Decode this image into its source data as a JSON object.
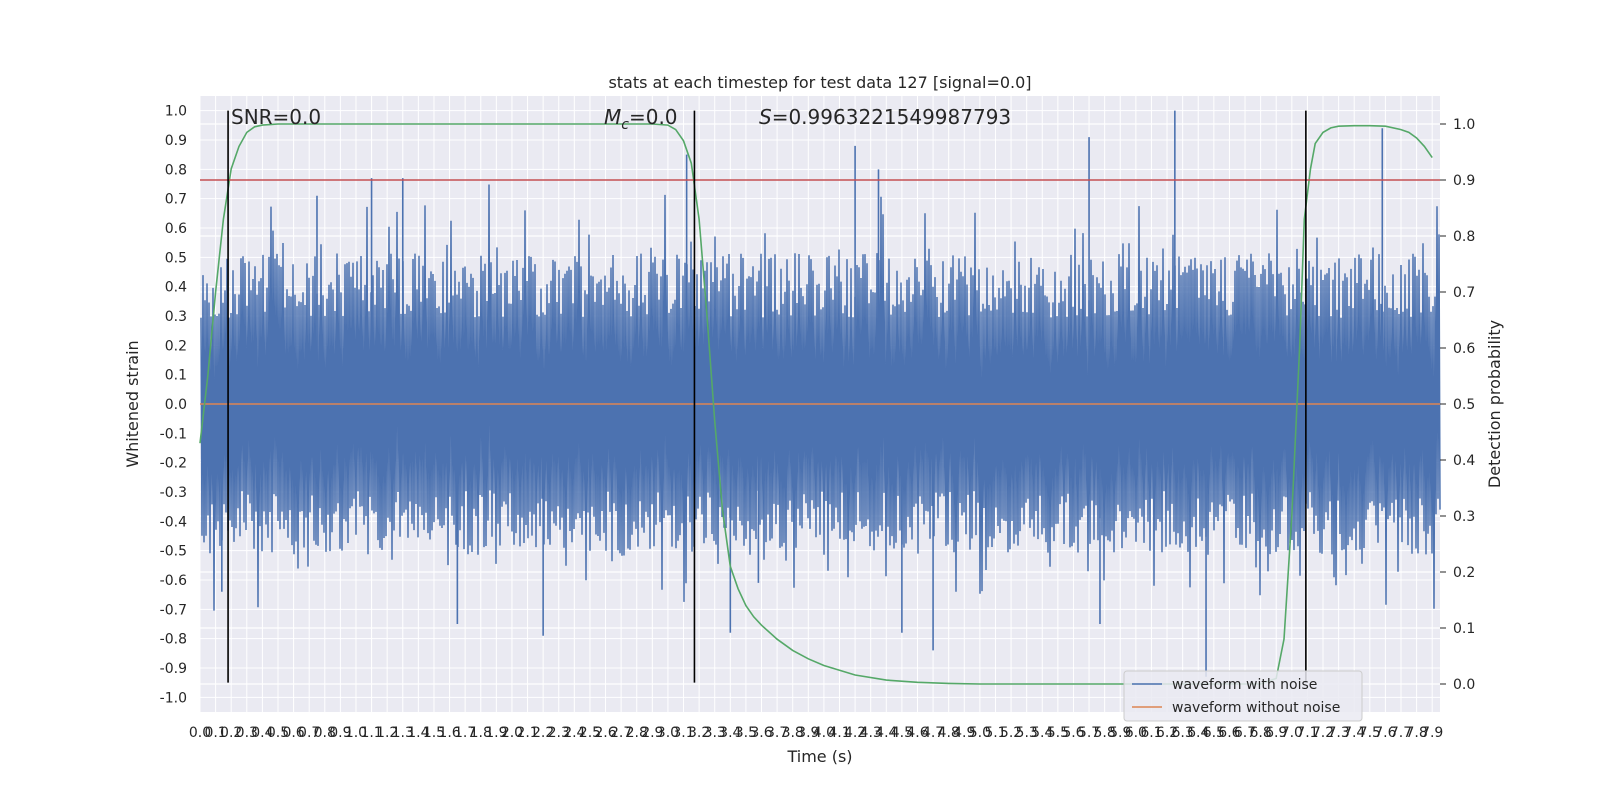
{
  "chart_data": {
    "type": "line",
    "title": "stats at each timestep for test data 127 [signal=0.0]",
    "xlabel": "Time (s)",
    "ylabel": "Whitened strain",
    "ylabel2": "Detection probability",
    "xlim": [
      0,
      7.95
    ],
    "ylim": [
      -1.05,
      1.05
    ],
    "ylim2": [
      -0.05,
      1.05
    ],
    "x_ticks": [
      "0.0",
      "0.1",
      "0.2",
      "0.3",
      "0.4",
      "0.5",
      "0.6",
      "0.7",
      "0.8",
      "0.9",
      "1.0",
      "1.1",
      "1.2",
      "1.3",
      "1.4",
      "1.5",
      "1.6",
      "1.7",
      "1.8",
      "1.9",
      "2.0",
      "2.1",
      "2.2",
      "2.3",
      "2.4",
      "2.5",
      "2.6",
      "2.7",
      "2.8",
      "2.9",
      "3.0",
      "3.1",
      "3.2",
      "3.3",
      "3.4",
      "3.5",
      "3.6",
      "3.7",
      "3.8",
      "3.9",
      "4.0",
      "4.1",
      "4.2",
      "4.3",
      "4.4",
      "4.5",
      "4.6",
      "4.7",
      "4.8",
      "4.9",
      "5.0",
      "5.1",
      "5.2",
      "5.3",
      "5.4",
      "5.5",
      "5.6",
      "5.7",
      "5.8",
      "5.9",
      "6.0",
      "6.1",
      "6.2",
      "6.3",
      "6.4",
      "6.5",
      "6.6",
      "6.7",
      "6.8",
      "6.9",
      "7.0",
      "7.1",
      "7.2",
      "7.3",
      "7.4",
      "7.5",
      "7.6",
      "7.7",
      "7.8",
      "7.9"
    ],
    "y_ticks": [
      "1.0",
      "0.9",
      "0.8",
      "0.7",
      "0.6",
      "0.5",
      "0.4",
      "0.3",
      "0.2",
      "0.1",
      "0.0",
      "-0.1",
      "-0.2",
      "-0.3",
      "-0.4",
      "-0.5",
      "-0.6",
      "-0.7",
      "-0.8",
      "-0.9",
      "-1.0"
    ],
    "y2_ticks": [
      "1.0",
      "0.9",
      "0.8",
      "0.7",
      "0.6",
      "0.5",
      "0.4",
      "0.3",
      "0.2",
      "0.1",
      "0.0"
    ],
    "annotations": {
      "snr": "SNR=0.0",
      "mc_symbol": "M",
      "mc_sub": "c",
      "mc_value": "=0.0",
      "s_symbol": "S",
      "s_value": "=0.9963221549987793"
    },
    "threshold": 0.9,
    "vlines_x": [
      0.18,
      3.17,
      7.09
    ],
    "noise": {
      "n_bars": 620,
      "typical_upper": 0.36,
      "typical_lower": -0.36,
      "peaks": [
        {
          "x": 0.75,
          "y": 0.71
        },
        {
          "x": 1.1,
          "y": 0.77
        },
        {
          "x": 1.3,
          "y": 0.77
        },
        {
          "x": 3.12,
          "y": 0.85
        },
        {
          "x": 4.2,
          "y": 0.88
        },
        {
          "x": 4.35,
          "y": 0.8
        },
        {
          "x": 5.7,
          "y": 0.91
        },
        {
          "x": 6.25,
          "y": 1.0
        },
        {
          "x": 7.58,
          "y": 0.94
        },
        {
          "x": 1.65,
          "y": -0.75
        },
        {
          "x": 2.2,
          "y": -0.79
        },
        {
          "x": 3.4,
          "y": -0.78
        },
        {
          "x": 4.5,
          "y": -0.78
        },
        {
          "x": 4.7,
          "y": -0.84
        },
        {
          "x": 5.77,
          "y": -0.75
        },
        {
          "x": 6.45,
          "y": -0.93
        },
        {
          "x": 0.14,
          "y": -0.64
        },
        {
          "x": 3.58,
          "y": -0.61
        }
      ]
    },
    "series": [
      {
        "name": "waveform with noise",
        "color": "#4c72b0"
      },
      {
        "name": "waveform without noise",
        "color": "#dd8452",
        "x": [
          0,
          7.95
        ],
        "y": [
          0.0,
          0.0
        ]
      },
      {
        "color": "#55a868",
        "axis": "right",
        "x": [
          0.0,
          0.05,
          0.1,
          0.15,
          0.2,
          0.25,
          0.3,
          0.35,
          0.4,
          0.45,
          0.5,
          0.6,
          0.8,
          1.0,
          1.5,
          2.0,
          2.5,
          2.8,
          2.9,
          3.0,
          3.05,
          3.1,
          3.15,
          3.2,
          3.25,
          3.3,
          3.35,
          3.4,
          3.45,
          3.5,
          3.55,
          3.6,
          3.7,
          3.8,
          3.9,
          4.0,
          4.2,
          4.4,
          4.6,
          4.8,
          5.0,
          5.5,
          6.0,
          6.5,
          6.8,
          6.9,
          6.95,
          7.0,
          7.05,
          7.08,
          7.12,
          7.15,
          7.2,
          7.25,
          7.3,
          7.4,
          7.5,
          7.6,
          7.7,
          7.75,
          7.8,
          7.85,
          7.9
        ],
        "y": [
          0.43,
          0.55,
          0.7,
          0.83,
          0.92,
          0.96,
          0.985,
          0.995,
          0.998,
          0.999,
          1.0,
          1.0,
          1.0,
          1.0,
          1.0,
          1.0,
          1.0,
          1.0,
          1.0,
          0.998,
          0.99,
          0.97,
          0.93,
          0.83,
          0.66,
          0.47,
          0.31,
          0.21,
          0.17,
          0.14,
          0.12,
          0.105,
          0.08,
          0.06,
          0.045,
          0.033,
          0.016,
          0.007,
          0.003,
          0.001,
          0.0,
          0.0,
          0.0,
          0.0,
          0.0,
          0.01,
          0.08,
          0.3,
          0.6,
          0.83,
          0.92,
          0.965,
          0.985,
          0.993,
          0.996,
          0.997,
          0.997,
          0.996,
          0.99,
          0.985,
          0.975,
          0.96,
          0.94
        ]
      },
      {
        "color": "#c44e52",
        "axis": "right",
        "x": [
          0,
          7.95
        ],
        "y": [
          0.9,
          0.9
        ]
      }
    ],
    "legend": {
      "location": "lower right",
      "entries": [
        {
          "label": "waveform with noise",
          "color": "#4c72b0"
        },
        {
          "label": "waveform without noise",
          "color": "#dd8452"
        }
      ]
    },
    "colors": {
      "plot_bg": "#eaeaf2",
      "grid": "#ffffff",
      "vline": "#000000"
    }
  }
}
